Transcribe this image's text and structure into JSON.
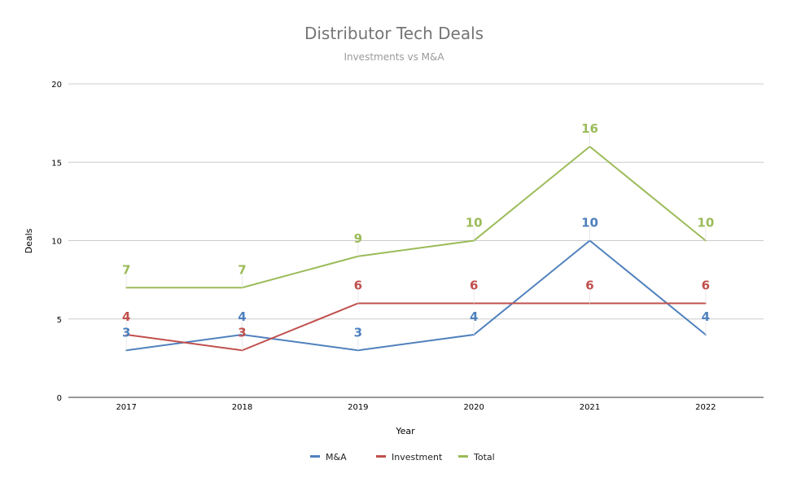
{
  "chart_data": {
    "type": "line",
    "title": "Distributor Tech Deals",
    "subtitle": "Investments vs M&A",
    "xlabel": "Year",
    "ylabel": "Deals",
    "categories": [
      "2017",
      "2018",
      "2019",
      "2020",
      "2021",
      "2022"
    ],
    "ylim": [
      0,
      20
    ],
    "yticks": [
      0,
      5,
      10,
      15,
      20
    ],
    "grid": true,
    "legend": "bottom",
    "data_labels": true,
    "series": [
      {
        "name": "M&A",
        "color": "#4f81bd",
        "values": [
          3,
          4,
          3,
          4,
          10,
          4
        ]
      },
      {
        "name": "Investment",
        "color": "#c0504d",
        "values": [
          4,
          3,
          6,
          6,
          6,
          6
        ]
      },
      {
        "name": "Total",
        "color": "#9bbb59",
        "values": [
          7,
          7,
          9,
          10,
          16,
          10
        ]
      }
    ]
  }
}
